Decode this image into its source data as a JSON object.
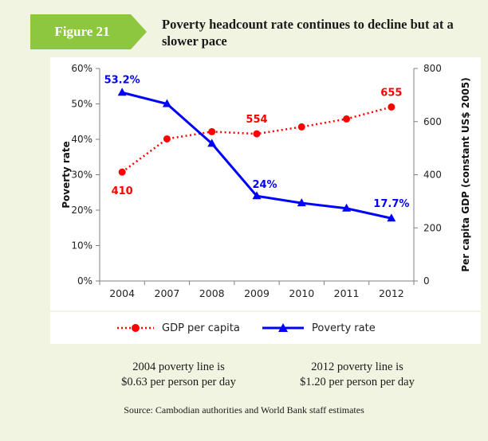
{
  "figure_label": "Figure 21",
  "title": "Poverty headcount rate continues to decline but at a slower pace",
  "chart_data": {
    "type": "line",
    "categories": [
      "2004",
      "2007",
      "2008",
      "2009",
      "2010",
      "2011",
      "2012"
    ],
    "ylabel": "Poverty rate",
    "y2label": "Per capita GDP (constant US$ 2005)",
    "ylim": [
      0,
      60
    ],
    "y2lim": [
      0,
      800
    ],
    "yticks": [
      "0%",
      "10%",
      "20%",
      "30%",
      "40%",
      "50%",
      "60%"
    ],
    "y2ticks": [
      "0",
      "200",
      "400",
      "600",
      "800"
    ],
    "grid": false,
    "legend_position": "bottom",
    "series": [
      {
        "name": "GDP per capita",
        "axis": "right",
        "color": "#ff0000",
        "style": "dotted",
        "marker": "circle",
        "values": [
          410,
          535,
          562,
          554,
          580,
          610,
          655
        ],
        "labels": [
          "410",
          "",
          "",
          "554",
          "",
          "",
          "655"
        ]
      },
      {
        "name": "Poverty rate",
        "axis": "left",
        "color": "#0000ff",
        "style": "solid",
        "marker": "triangle",
        "values": [
          53.2,
          50.0,
          38.8,
          24.0,
          22.0,
          20.5,
          17.7
        ],
        "labels": [
          "53.2%",
          "",
          "",
          "24%",
          "",
          "",
          "17.7%"
        ]
      }
    ]
  },
  "notes": [
    {
      "line1": "2004 poverty line is",
      "line2": "$0.63 per person per day"
    },
    {
      "line1": "2012 poverty line is",
      "line2": "$1.20 per person per day"
    }
  ],
  "source": "Source: Cambodian authorities and World Bank staff estimates",
  "colors": {
    "background": "#f1f4e1",
    "badge": "#8dc63f",
    "gdp": "#ff0000",
    "poverty": "#0000ff"
  }
}
